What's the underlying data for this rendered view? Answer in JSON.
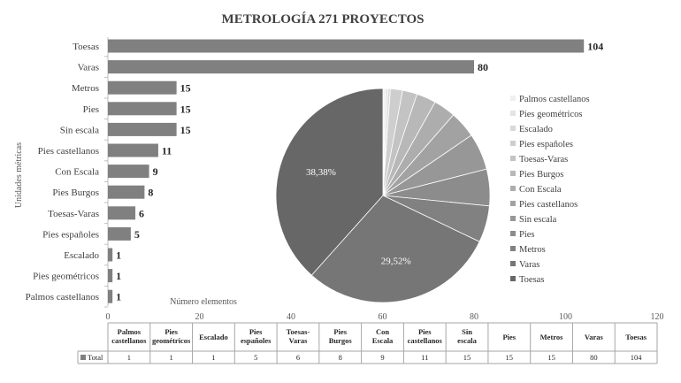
{
  "chart_data": {
    "type": "bar",
    "title": "METROLOGÍA 271 PROYECTOS",
    "ylabel": "Unidades métricas",
    "xlabel": "Número elementos",
    "xlim": [
      0,
      120
    ],
    "xticks": [
      "0",
      "20",
      "40",
      "60",
      "80",
      "100",
      "120"
    ],
    "categories": [
      "Toesas",
      "Varas",
      "Metros",
      "Pies",
      "Sin escala",
      "Pies castellanos",
      "Con Escala",
      "Pies Burgos",
      "Toesas-Varas",
      "Pies españoles",
      "Escalado",
      "Pies geométricos",
      "Palmos castellanos"
    ],
    "series": [
      {
        "name": "Total",
        "values": [
          104,
          80,
          15,
          15,
          15,
          11,
          9,
          8,
          6,
          5,
          1,
          1,
          1
        ]
      }
    ],
    "bar_color": "#808080",
    "pie": {
      "labels_shown": [
        "38,38%",
        "29,52%"
      ],
      "legend": [
        "Palmos castellanos",
        "Pies geométricos",
        "Escalado",
        "Pies españoles",
        "Toesas-Varas",
        "Pies Burgos",
        "Con Escala",
        "Pies castellanos",
        "Sin escala",
        "Pies",
        "Metros",
        "Varas",
        "Toesas"
      ],
      "values": [
        1,
        1,
        1,
        5,
        6,
        8,
        9,
        11,
        15,
        15,
        15,
        80,
        104
      ],
      "colors": [
        "#efefef",
        "#e4e4e4",
        "#d9d9d9",
        "#cecece",
        "#c3c3c3",
        "#b8b8b8",
        "#adadad",
        "#a2a2a2",
        "#979797",
        "#8c8c8c",
        "#818181",
        "#767676",
        "#676767"
      ],
      "legend_position": "right"
    },
    "table": {
      "headers": [
        "Palmos castellanos",
        "Pies geométricos",
        "Escalado",
        "Pies españoles",
        "Toesas-Varas",
        "Pies Burgos",
        "Con Escala",
        "Pies castellanos",
        "Sin escala",
        "Pies",
        "Metros",
        "Varas",
        "Toesas"
      ],
      "row_label": "Total",
      "values": [
        "1",
        "1",
        "1",
        "5",
        "6",
        "8",
        "9",
        "11",
        "15",
        "15",
        "15",
        "80",
        "104"
      ]
    }
  }
}
